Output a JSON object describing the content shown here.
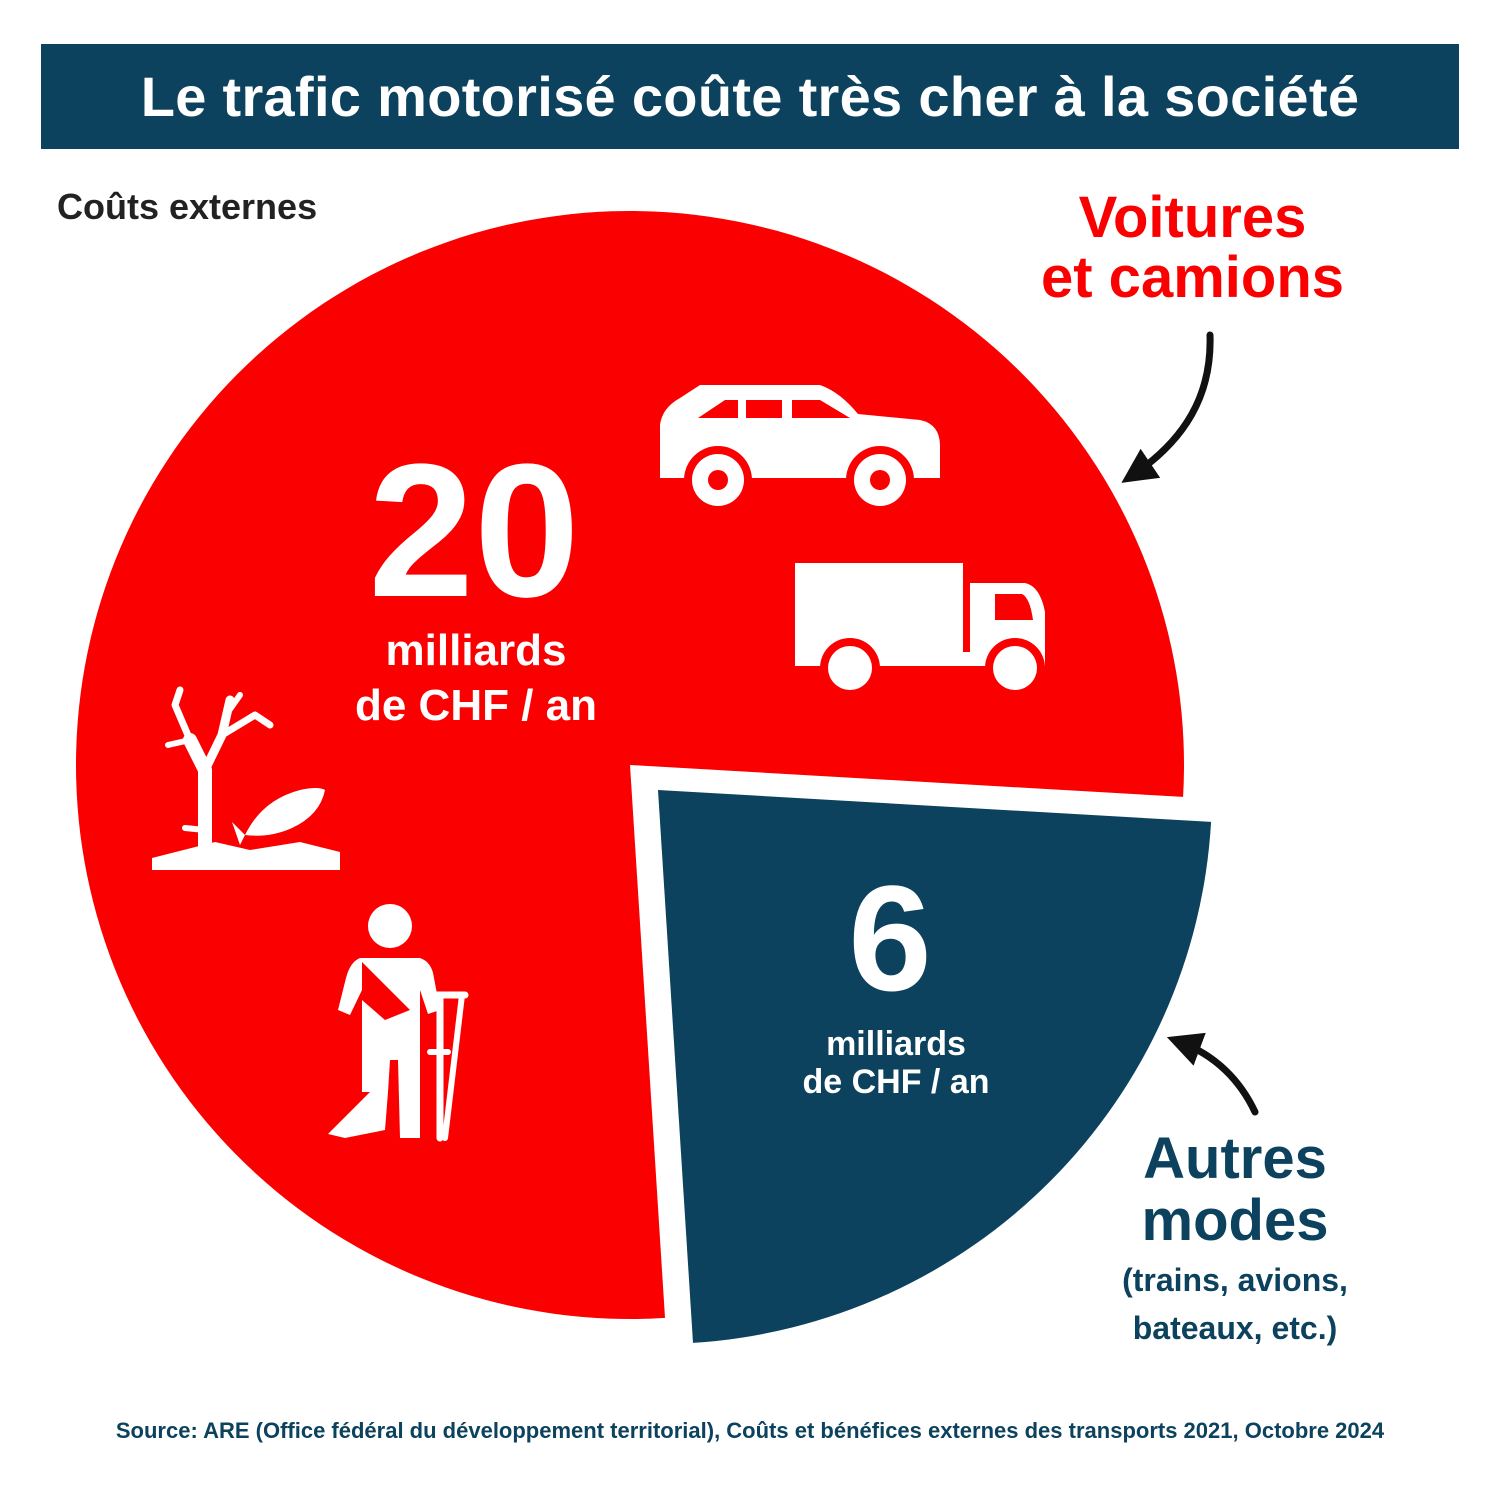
{
  "title": "Le trafic motorisé coûte très cher à la société",
  "subtitle": "Coûts externes",
  "colors": {
    "cars": "#fb0000",
    "other": "#0c425d",
    "banner": "#0c425d",
    "source": "#0c425d",
    "white": "#ffffff"
  },
  "icons": [
    "car-icon",
    "truck-icon",
    "dead-tree-and-fish-icon",
    "injured-person-icon"
  ],
  "chart_data": {
    "type": "pie",
    "unit": "milliards de CHF / an",
    "series": [
      {
        "name": "Voitures et camions",
        "name_lines": [
          "Voitures",
          "et camions"
        ],
        "value": 20,
        "value_text": "20",
        "unit_lines": [
          "milliards",
          "de CHF / an"
        ],
        "color": "#fb0000"
      },
      {
        "name": "Autres modes",
        "name_lines": [
          "Autres",
          "modes"
        ],
        "detail_lines": [
          "(trains, avions,",
          "bateaux, etc.)"
        ],
        "value": 6,
        "value_text": "6",
        "unit_lines": [
          "milliards",
          "de CHF / an"
        ],
        "color": "#0c425d"
      }
    ]
  },
  "source": "Source: ARE (Office fédéral du développement territorial), Coûts et bénéfices externes des transports 2021, Octobre 2024"
}
